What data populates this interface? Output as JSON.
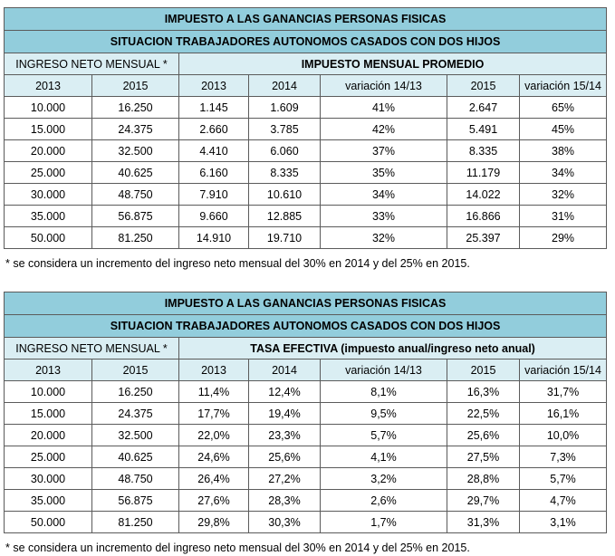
{
  "tables": [
    {
      "title_line1": "IMPUESTO A LAS GANANCIAS PERSONAS FISICAS",
      "title_line2": "SITUACION TRABAJADORES AUTONOMOS CASADOS CON DOS HIJOS",
      "left_header": "INGRESO NETO MENSUAL *",
      "right_header": "IMPUESTO MENSUAL PROMEDIO",
      "columns": [
        "2013",
        "2015",
        "2013",
        "2014",
        "variación 14/13",
        "2015",
        "variación 15/14"
      ],
      "rows": [
        [
          "10.000",
          "16.250",
          "1.145",
          "1.609",
          "41%",
          "2.647",
          "65%"
        ],
        [
          "15.000",
          "24.375",
          "2.660",
          "3.785",
          "42%",
          "5.491",
          "45%"
        ],
        [
          "20.000",
          "32.500",
          "4.410",
          "6.060",
          "37%",
          "8.335",
          "38%"
        ],
        [
          "25.000",
          "40.625",
          "6.160",
          "8.335",
          "35%",
          "11.179",
          "34%"
        ],
        [
          "30.000",
          "48.750",
          "7.910",
          "10.610",
          "34%",
          "14.022",
          "32%"
        ],
        [
          "35.000",
          "56.875",
          "9.660",
          "12.885",
          "33%",
          "16.866",
          "31%"
        ],
        [
          "50.000",
          "81.250",
          "14.910",
          "19.710",
          "32%",
          "25.397",
          "29%"
        ]
      ],
      "note": "* se considera un incremento del ingreso neto mensual del 30% en 2014 y del 25% en 2015."
    },
    {
      "title_line1": "IMPUESTO A LAS GANANCIAS PERSONAS FISICAS",
      "title_line2": "SITUACION TRABAJADORES AUTONOMOS CASADOS CON DOS HIJOS",
      "left_header": "INGRESO NETO MENSUAL *",
      "right_header": "TASA EFECTIVA (impuesto anual/ingreso neto anual)",
      "columns": [
        "2013",
        "2015",
        "2013",
        "2014",
        "variación 14/13",
        "2015",
        "variación 15/14"
      ],
      "rows": [
        [
          "10.000",
          "16.250",
          "11,4%",
          "12,4%",
          "8,1%",
          "16,3%",
          "31,7%"
        ],
        [
          "15.000",
          "24.375",
          "17,7%",
          "19,4%",
          "9,5%",
          "22,5%",
          "16,1%"
        ],
        [
          "20.000",
          "32.500",
          "22,0%",
          "23,3%",
          "5,7%",
          "25,6%",
          "10,0%"
        ],
        [
          "25.000",
          "40.625",
          "24,6%",
          "25,6%",
          "4,1%",
          "27,5%",
          "7,3%"
        ],
        [
          "30.000",
          "48.750",
          "26,4%",
          "27,2%",
          "3,2%",
          "28,8%",
          "5,7%"
        ],
        [
          "35.000",
          "56.875",
          "27,6%",
          "28,3%",
          "2,6%",
          "29,7%",
          "4,7%"
        ],
        [
          "50.000",
          "81.250",
          "29,8%",
          "30,3%",
          "1,7%",
          "31,3%",
          "3,1%"
        ]
      ],
      "note": "* se considera un incremento del ingreso neto mensual del 30% en 2014 y del 25% en 2015."
    }
  ]
}
